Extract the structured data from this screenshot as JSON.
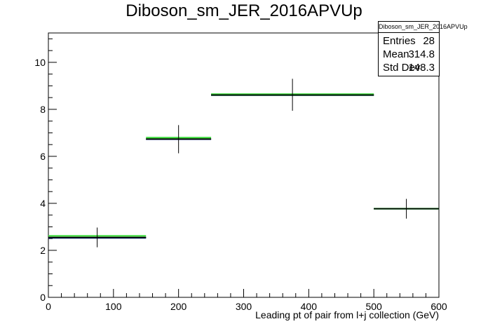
{
  "chart_data": {
    "type": "histogram",
    "title": "Diboson_sm_JER_2016APVUp",
    "xlabel": "Leading pt of pair from l+j collection (GeV)",
    "ylabel": "",
    "xlim": [
      0,
      600
    ],
    "ylim": [
      0,
      11.25
    ],
    "xticks": [
      "0",
      "100",
      "200",
      "300",
      "400",
      "500",
      "600"
    ],
    "yticks": [
      "0",
      "2",
      "4",
      "6",
      "8",
      "10"
    ],
    "bin_edges": [
      0,
      150,
      250,
      500,
      600
    ],
    "series": [
      {
        "values": [
          2.55,
          6.73,
          8.62,
          3.77
        ],
        "errors": [
          0.42,
          0.6,
          0.68,
          0.42
        ],
        "color": "#000000",
        "style": "markers"
      },
      {
        "values": [
          2.53,
          6.73,
          8.6,
          3.77
        ],
        "color": "#000080",
        "style": "hist"
      },
      {
        "values": [
          2.62,
          6.8,
          8.65,
          3.77
        ],
        "color": "#44dd44",
        "style": "hist"
      },
      {
        "values": [
          2.55,
          6.74,
          8.61,
          3.77
        ],
        "color": "#004400",
        "style": "hist"
      }
    ],
    "stats": {
      "title": "Diboson_sm_JER_2016APVUp",
      "entries_label": "Entries",
      "entries": "28",
      "mean_label": "Mean",
      "mean": "314.8",
      "stddev_label": "Std Dev",
      "stddev": "148.3"
    },
    "grid": false,
    "legend": "top-right stats box"
  }
}
